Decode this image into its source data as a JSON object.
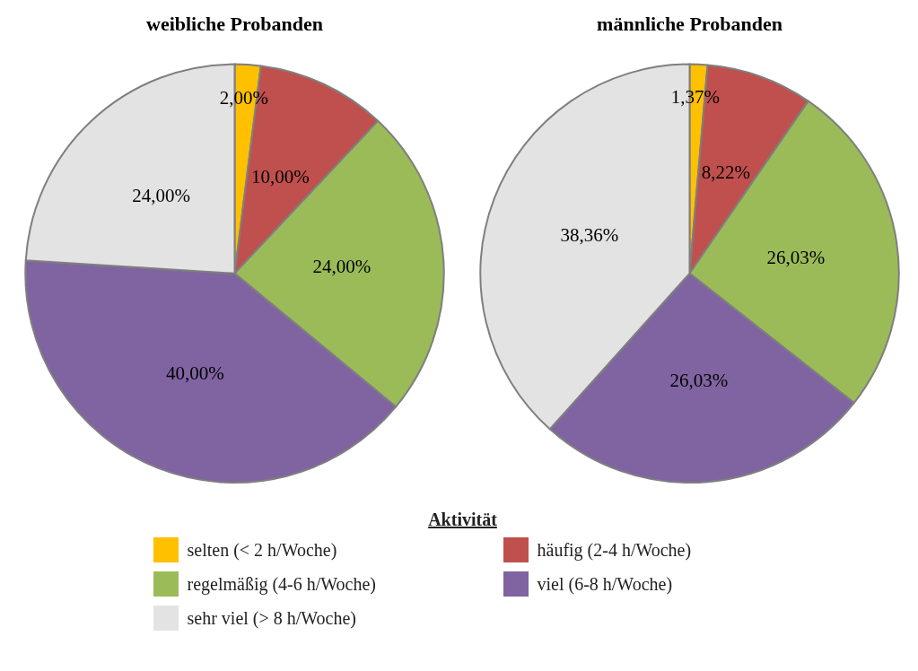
{
  "chart_data": [
    {
      "type": "pie",
      "title": "weibliche Probanden",
      "categories": [
        "selten (< 2 h/Woche)",
        "häufig (2-4 h/Woche)",
        "regelmäßig (4-6 h/Woche)",
        "viel (6-8 h/Woche)",
        "sehr viel (> 8 h/Woche)"
      ],
      "values": [
        2,
        10,
        24,
        40,
        24
      ],
      "value_labels": [
        "2,00%",
        "10,00%",
        "24,00%",
        "40,00%",
        "24,00%"
      ],
      "colors": [
        "#ffc000",
        "#c0504d",
        "#9bbb59",
        "#8064a2",
        "#e3e3e3"
      ],
      "legend": "bottom",
      "legend_title": "Aktivität"
    },
    {
      "type": "pie",
      "title": "männliche Probanden",
      "categories": [
        null,
        null,
        null,
        null,
        null
      ],
      "values": [
        1.37,
        8.22,
        26.03,
        26.03,
        38.36
      ],
      "value_labels": [
        "1,37%",
        "8,22%",
        "26,03%",
        "26,03%",
        "38,36%"
      ],
      "colors": [
        "#ffc000",
        "#c0504d",
        "#9bbb59",
        "#8064a2",
        "#e3e3e3"
      ]
    }
  ]
}
